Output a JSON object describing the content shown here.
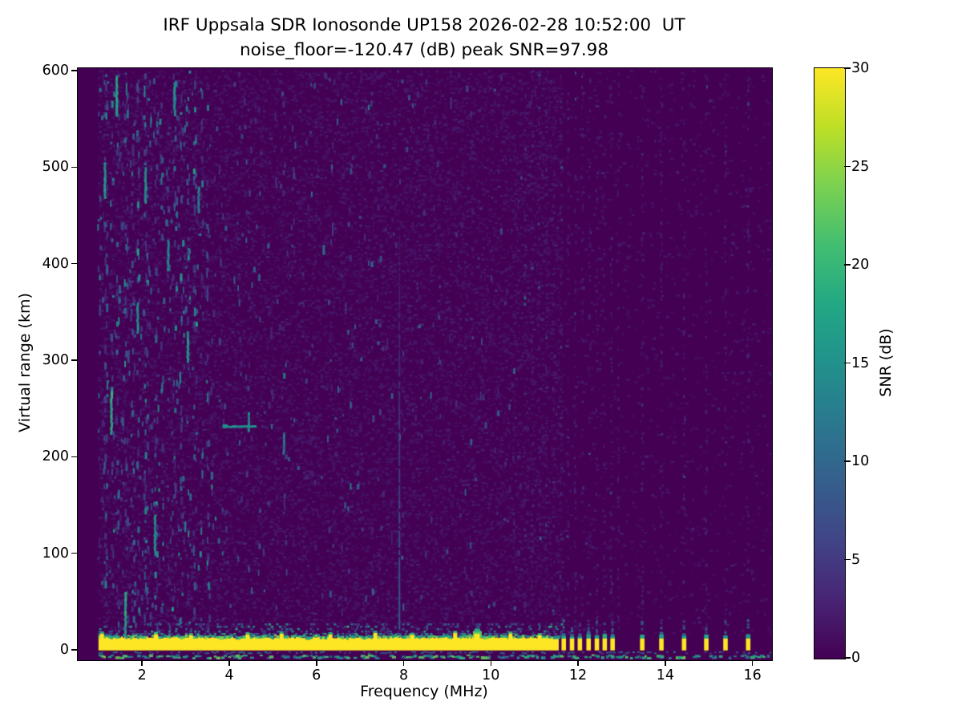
{
  "chart_data": {
    "type": "heatmap",
    "title": "IRF Uppsala SDR Ionosonde UP158 2026-02-28 10:52:00  UT",
    "subtitle": "noise_floor=-120.47 (dB) peak SNR=97.98",
    "station": "UP158",
    "timestamp_ut": "2026-02-28 10:52:00 UT",
    "noise_floor_db": -120.47,
    "peak_snr_db": 97.98,
    "xlabel": "Frequency (MHz)",
    "ylabel": "Virtual range (km)",
    "colorbar_label": "SNR (dB)",
    "xlim": [
      0.525,
      16.43
    ],
    "ylim": [
      -10,
      602
    ],
    "xticks": [
      2,
      4,
      6,
      8,
      10,
      12,
      14,
      16
    ],
    "yticks": [
      0,
      100,
      200,
      300,
      400,
      500,
      600
    ],
    "colorbar_ticks": [
      0,
      5,
      10,
      15,
      20,
      25,
      30
    ],
    "colorbar_range": [
      0,
      30
    ],
    "colormap": "viridis",
    "colormap_stops": [
      [
        0,
        "#440154"
      ],
      [
        0.1,
        "#482475"
      ],
      [
        0.2,
        "#414487"
      ],
      [
        0.3,
        "#355f8d"
      ],
      [
        0.4,
        "#2a788e"
      ],
      [
        0.5,
        "#21918c"
      ],
      [
        0.6,
        "#22a884"
      ],
      [
        0.7,
        "#42be71"
      ],
      [
        0.8,
        "#7ad151"
      ],
      [
        0.9,
        "#bddf26"
      ],
      [
        1,
        "#fde725"
      ]
    ],
    "grid": false,
    "legend": "colorbar-right",
    "seed": 158,
    "features": {
      "min_data_freq_mhz": 1.0,
      "ground_pulse": {
        "continuous_band": {
          "f_start": 1.0,
          "f_end": 11.55,
          "range_km": [
            -2,
            12
          ],
          "snr_db": 30
        },
        "discrete_bar_freqs_mhz": [
          11.67,
          11.86,
          12.04,
          12.24,
          12.43,
          12.61,
          12.79,
          13.47,
          13.91,
          14.43,
          14.94,
          15.38,
          15.9
        ],
        "bump_freqs_mhz": [
          1.08,
          2.32,
          3.12,
          4.42,
          5.2,
          6.32,
          7.35,
          8.2,
          9.18,
          9.68,
          10.45,
          11.12
        ]
      },
      "echo_trace": {
        "range_km": 232,
        "f_start": 3.88,
        "f_end": 4.58,
        "snr_db": 15
      },
      "vertical_streak": {
        "freq_mhz": 7.9,
        "range_km": [
          22,
          430
        ],
        "snr_db": 8
      },
      "noise_zones": [
        {
          "f_range_mhz": [
            1.0,
            3.6
          ],
          "density": "high",
          "snr_db_max": 18
        },
        {
          "f_range_mhz": [
            3.6,
            7.5
          ],
          "density": "medium",
          "snr_db_max": 13
        },
        {
          "f_range_mhz": [
            7.5,
            10.75
          ],
          "density": "low",
          "snr_db_max": 11
        },
        {
          "f_range_mhz": [
            10.75,
            16.4
          ],
          "density": "faint-columns",
          "snr_db_max": 5
        }
      ],
      "hot_columns_mhz": [
        1.15,
        1.3,
        1.42,
        1.62,
        1.78,
        1.9,
        2.08,
        2.3,
        2.45,
        2.6,
        2.75,
        2.9,
        3.05,
        3.2,
        3.35,
        3.5
      ],
      "bright_streaks": [
        {
          "f": 1.15,
          "km": [
            470,
            505
          ],
          "snr": 16
        },
        {
          "f": 1.3,
          "km": [
            225,
            268
          ],
          "snr": 19
        },
        {
          "f": 1.42,
          "km": [
            555,
            595
          ],
          "snr": 17
        },
        {
          "f": 1.62,
          "km": [
            15,
            60
          ],
          "snr": 18
        },
        {
          "f": 1.9,
          "km": [
            330,
            360
          ],
          "snr": 15
        },
        {
          "f": 2.08,
          "km": [
            465,
            500
          ],
          "snr": 16
        },
        {
          "f": 2.3,
          "km": [
            100,
            140
          ],
          "snr": 15
        },
        {
          "f": 2.6,
          "km": [
            395,
            425
          ],
          "snr": 14
        },
        {
          "f": 2.75,
          "km": [
            555,
            588
          ],
          "snr": 15
        },
        {
          "f": 3.05,
          "km": [
            298,
            330
          ],
          "snr": 16
        },
        {
          "f": 3.3,
          "km": [
            455,
            480
          ],
          "snr": 13
        },
        {
          "f": 4.45,
          "km": [
            228,
            246
          ],
          "snr": 14
        },
        {
          "f": 5.25,
          "km": [
            205,
            225
          ],
          "snr": 12
        }
      ]
    }
  }
}
